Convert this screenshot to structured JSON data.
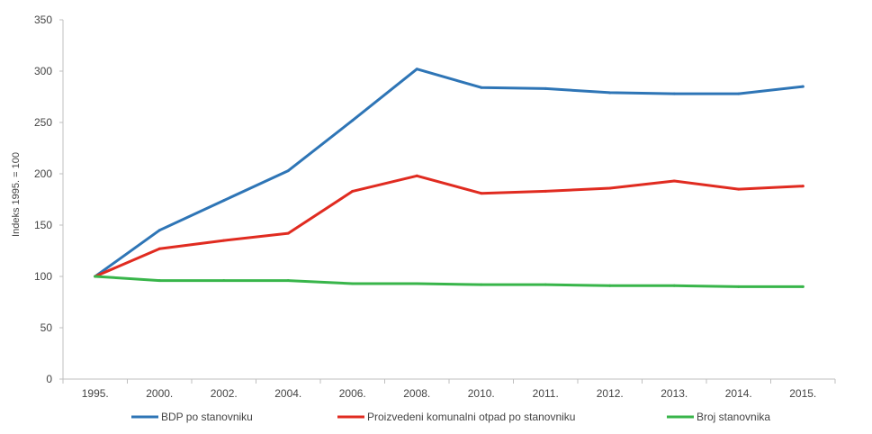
{
  "chart_data": {
    "type": "line",
    "categories": [
      "1995.",
      "2000.",
      "2002.",
      "2004.",
      "2006.",
      "2008.",
      "2010.",
      "2011.",
      "2012.",
      "2013.",
      "2014.",
      "2015."
    ],
    "ylabel": "Indeks 1995. = 100",
    "ylim": [
      0,
      350
    ],
    "yticks": [
      0,
      50,
      100,
      150,
      200,
      250,
      300,
      350
    ],
    "grid": false,
    "legend_position": "bottom",
    "series": [
      {
        "name": "BDP po stanovniku",
        "color": "#2e75b6",
        "values": [
          100,
          145,
          174,
          203,
          252,
          302,
          284,
          283,
          279,
          278,
          278,
          285
        ]
      },
      {
        "name": "Proizvedeni komunalni otpad po stanovniku",
        "color": "#e02b20",
        "values": [
          100,
          127,
          135,
          142,
          183,
          198,
          181,
          183,
          186,
          193,
          185,
          188
        ]
      },
      {
        "name": "Broj stanovnika",
        "color": "#38b54a",
        "values": [
          100,
          96,
          96,
          96,
          93,
          93,
          92,
          92,
          91,
          91,
          90,
          90
        ]
      }
    ]
  }
}
